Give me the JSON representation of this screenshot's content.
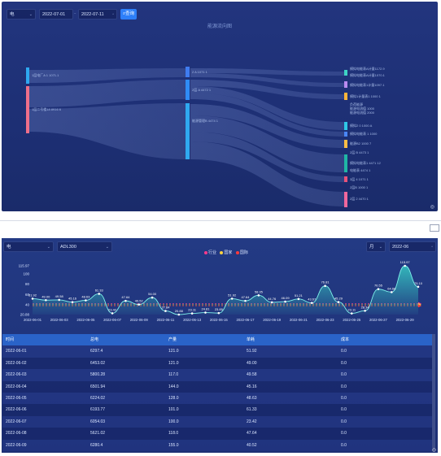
{
  "top_filter": {
    "select1": "电",
    "date_from": "2022-07-01",
    "date_to": "2022-07-11",
    "search_label": "查询"
  },
  "sankey": {
    "title": "能源流向图",
    "left_nodes": [
      "1层电厂A 1 1071.1",
      "1层二号楼18 8916 6"
    ],
    "mid_nodes": [
      "2 A 1071 1",
      "2层 A 4472 1",
      "能源管理B 4474 1"
    ],
    "right_nodes": [
      "模拟电能表A计量1172.9",
      "模拟电能表A计量1070.1",
      "模拟电能表1计量1097.1",
      "模拟1计量表1 1000 1",
      "模拟2 0 1000 A",
      "模拟电能表 1 1000",
      "能源B2 1000 7",
      "2层 B 4473 1",
      "模拟电能表1 4471 12",
      "电能表 4474 1",
      "3层 4 1071 1",
      "2层B 1000 1",
      "2层 2 4470 1"
    ],
    "right_note": [
      "负荷能源",
      "能源电流值 1000",
      "能源电流值 2000"
    ]
  },
  "bottom_filter": {
    "select1": "电",
    "select2": "ADL300",
    "period": "月",
    "month": "2022-06"
  },
  "legend": [
    {
      "name": "行业",
      "color": "#ff3b8b"
    },
    {
      "name": "国家",
      "color": "#ffd23f"
    },
    {
      "name": "国际",
      "color": "#ff3b3b"
    }
  ],
  "chart_data": {
    "type": "area",
    "categories": [
      "2022-06-01",
      "2022-06-02",
      "2022-06-03",
      "2022-06-04",
      "2022-06-05",
      "2022-06-06",
      "2022-06-07",
      "2022-06-08",
      "2022-06-09",
      "2022-06-10",
      "2022-06-11",
      "2022-06-12",
      "2022-06-13",
      "2022-06-14",
      "2022-06-15",
      "2022-06-16",
      "2022-06-17",
      "2022-06-18",
      "2022-06-19",
      "2022-06-20",
      "2022-06-21",
      "2022-06-22",
      "2022-06-23",
      "2022-06-24",
      "2022-06-25",
      "2022-06-26",
      "2022-06-27",
      "2022-06-28",
      "2022-06-29",
      "2022-06-30"
    ],
    "x_ticks": [
      "2022-06-01",
      "2022-06-03",
      "2022-06-05",
      "2022-06-07",
      "2022-06-09",
      "2022-06-11",
      "2022-06-13",
      "2022-06-15",
      "2022-06-17",
      "2022-06-19",
      "2022-06-21",
      "2022-06-23",
      "2022-06-25",
      "2022-06-27",
      "2022-06-29"
    ],
    "values": [
      51.92,
      49.0,
      49.58,
      45.16,
      48.63,
      61.33,
      23.42,
      47.64,
      40.52,
      54.0,
      27.84,
      20.88,
      23.11,
      24.81,
      23.85,
      51.92,
      47.64,
      58.35,
      44.76,
      46.09,
      51.21,
      43.67,
      76.81,
      45.29,
      23.11,
      28.34,
      70.55,
      64.68,
      115.97,
      75.1
    ],
    "data_labels": [
      "51.92",
      "49.00",
      "49.58",
      "45.16",
      "48.63",
      "61.33",
      "23.42",
      "47.64",
      "40.52",
      "54.00",
      "27.84",
      "20.88",
      "23.11",
      "24.81",
      "23.85",
      "51.92",
      "47.64",
      "58.35",
      "44.76",
      "46.09",
      "51.21",
      "43.67",
      "76.81",
      "45.29",
      "23.11",
      "28.34",
      "70.55",
      "64.68",
      "115.97",
      "75.10"
    ],
    "y_ticks": [
      "115.97",
      "100",
      "80",
      "60",
      "40",
      "20.88"
    ],
    "ylim": [
      20.88,
      115.97
    ],
    "ref_lines": [
      {
        "name": "行业",
        "value": 42
      },
      {
        "name": "国家",
        "value": 40
      },
      {
        "name": "国际",
        "value": 38
      }
    ]
  },
  "table": {
    "headers": [
      "时间",
      "总电",
      "产量",
      "单耗",
      "成本"
    ],
    "rows": [
      [
        "2022-06-01",
        "6297.4",
        "121.0",
        "51.92",
        "0.0"
      ],
      [
        "2022-06-02",
        "6453.02",
        "121.0",
        "49.00",
        "0.0"
      ],
      [
        "2022-06-03",
        "5800.28",
        "117.0",
        "49.58",
        "0.0"
      ],
      [
        "2022-06-04",
        "6501.94",
        "144.0",
        "45.16",
        "0.0"
      ],
      [
        "2022-06-05",
        "6224.02",
        "128.0",
        "48.63",
        "0.0"
      ],
      [
        "2022-06-06",
        "6193.77",
        "101.0",
        "61.33",
        "0.0"
      ],
      [
        "2022-06-07",
        "6054.03",
        "100.0",
        "23.42",
        "0.0"
      ],
      [
        "2022-06-08",
        "5621.02",
        "118.0",
        "47.64",
        "0.0"
      ],
      [
        "2022-06-09",
        "6280.4",
        "155.0",
        "40.52",
        "0.0"
      ]
    ]
  }
}
